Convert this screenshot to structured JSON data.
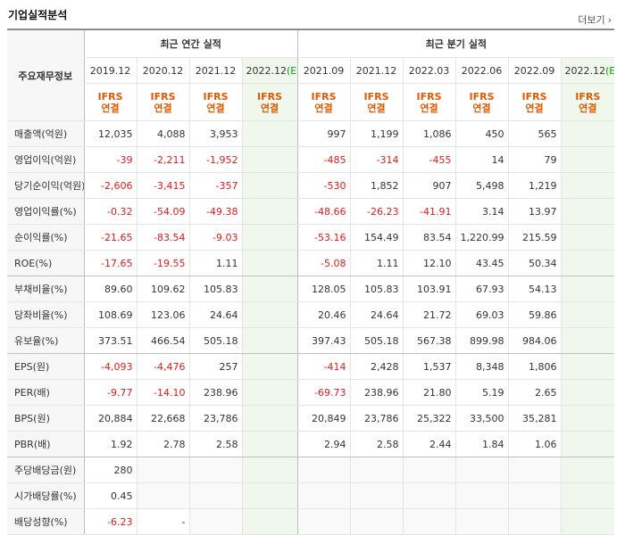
{
  "title": "기업실적분석",
  "more_label": "더보기",
  "headers": {
    "label_col": "주요재무정보",
    "annual_title": "최근 연간 실적",
    "quarterly_title": "최근 분기 실적",
    "annual_periods": [
      "2019.12",
      "2020.12",
      "2021.12",
      "2022.12"
    ],
    "quarterly_periods": [
      "2021.09",
      "2021.12",
      "2022.03",
      "2022.06",
      "2022.09",
      "2022.12"
    ],
    "estimate_mark": "(E)",
    "ifrs_line1": "IFRS",
    "ifrs_line2": "연결"
  },
  "rows": [
    {
      "label": "매출액(억원)",
      "values": [
        "12,035",
        "4,088",
        "3,953",
        "",
        "997",
        "1,199",
        "1,086",
        "450",
        "565",
        ""
      ]
    },
    {
      "label": "영업이익(억원)",
      "values": [
        "-39",
        "-2,211",
        "-1,952",
        "",
        "-485",
        "-314",
        "-455",
        "14",
        "79",
        ""
      ]
    },
    {
      "label": "당기순이익(억원)",
      "values": [
        "-2,606",
        "-3,415",
        "-357",
        "",
        "-530",
        "1,852",
        "907",
        "5,498",
        "1,219",
        ""
      ]
    },
    {
      "label": "영업이익률(%)",
      "values": [
        "-0.32",
        "-54.09",
        "-49.38",
        "",
        "-48.66",
        "-26.23",
        "-41.91",
        "3.14",
        "13.97",
        ""
      ]
    },
    {
      "label": "순이익률(%)",
      "values": [
        "-21.65",
        "-83.54",
        "-9.03",
        "",
        "-53.16",
        "154.49",
        "83.54",
        "1,220.99",
        "215.59",
        ""
      ]
    },
    {
      "label": "ROE(%)",
      "values": [
        "-17.65",
        "-19.55",
        "1.11",
        "",
        "-5.08",
        "1.11",
        "12.10",
        "43.45",
        "50.34",
        ""
      ]
    },
    {
      "label": "부채비율(%)",
      "values": [
        "89.60",
        "109.62",
        "105.83",
        "",
        "128.05",
        "105.83",
        "103.91",
        "67.93",
        "54.13",
        ""
      ]
    },
    {
      "label": "당좌비율(%)",
      "values": [
        "108.69",
        "123.06",
        "24.64",
        "",
        "20.46",
        "24.64",
        "21.72",
        "69.03",
        "59.86",
        ""
      ]
    },
    {
      "label": "유보율(%)",
      "values": [
        "373.51",
        "466.54",
        "505.18",
        "",
        "397.43",
        "505.18",
        "567.38",
        "899.98",
        "984.06",
        ""
      ]
    },
    {
      "label": "EPS(원)",
      "values": [
        "-4,093",
        "-4,476",
        "257",
        "",
        "-414",
        "2,428",
        "1,537",
        "8,348",
        "1,806",
        ""
      ]
    },
    {
      "label": "PER(배)",
      "values": [
        "-9.77",
        "-14.10",
        "238.96",
        "",
        "-69.73",
        "238.96",
        "21.80",
        "5.19",
        "2.65",
        ""
      ]
    },
    {
      "label": "BPS(원)",
      "values": [
        "20,884",
        "22,668",
        "23,786",
        "",
        "20,849",
        "23,786",
        "25,322",
        "33,500",
        "35,281",
        ""
      ]
    },
    {
      "label": "PBR(배)",
      "values": [
        "1.92",
        "2.78",
        "2.58",
        "",
        "2.94",
        "2.58",
        "2.44",
        "1.84",
        "1.06",
        ""
      ]
    },
    {
      "label": "주당배당금(원)",
      "values": [
        "280",
        "",
        "",
        "",
        "",
        "",
        "",
        "",
        "",
        ""
      ]
    },
    {
      "label": "시가배당률(%)",
      "values": [
        "0.45",
        "",
        "",
        "",
        "",
        "",
        "",
        "",
        "",
        ""
      ]
    },
    {
      "label": "배당성향(%)",
      "values": [
        "-6.23",
        "-",
        "",
        "",
        "",
        "",
        "",
        "",
        "",
        ""
      ]
    }
  ]
}
